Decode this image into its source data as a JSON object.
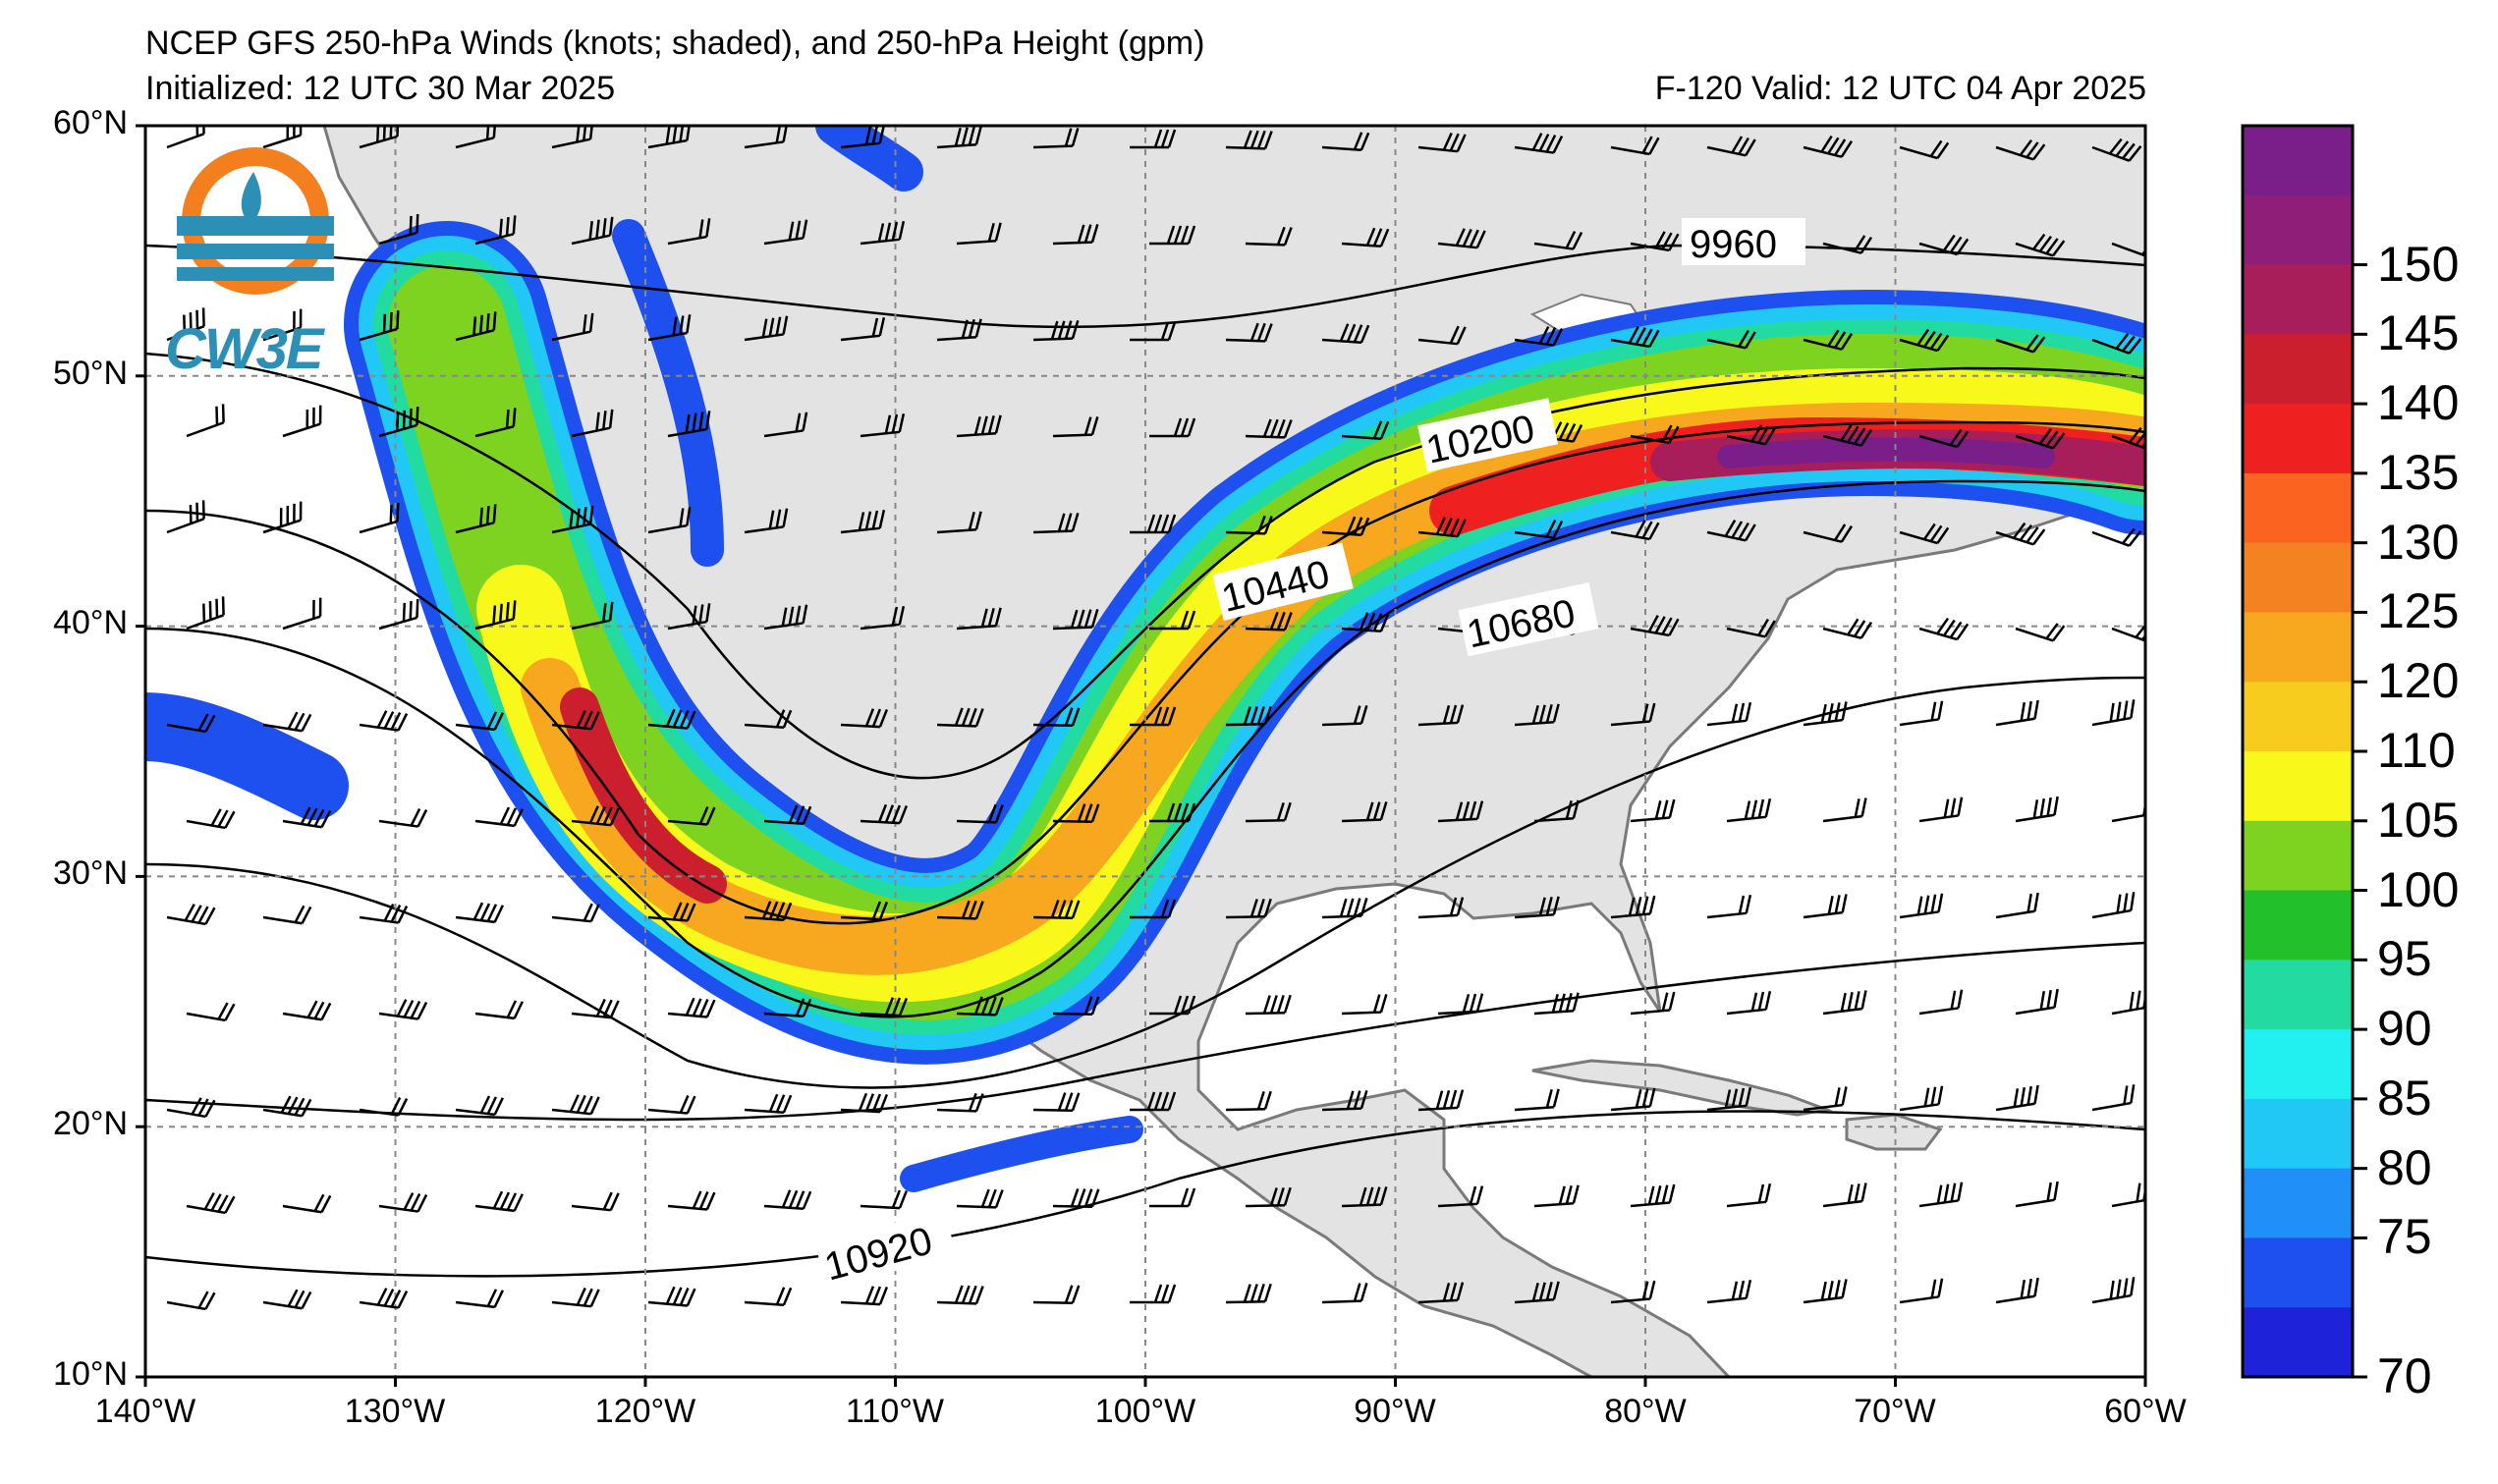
{
  "title_line1": "NCEP GFS 250-hPa Winds (knots; shaded), and 250-hPa Height (gpm)",
  "title_line2": "Initialized: 12 UTC 30 Mar 2025",
  "title_valid": "F-120  Valid: 12 UTC 04 Apr 2025",
  "logo_text": "CW3E",
  "map": {
    "lon_range": [
      -140,
      -60
    ],
    "lat_range": [
      10,
      60
    ],
    "lat_labels": [
      "60°N",
      "50°N",
      "40°N",
      "30°N",
      "20°N",
      "10°N"
    ],
    "lon_labels": [
      "140°W",
      "130°W",
      "120°W",
      "110°W",
      "100°W",
      "90°W",
      "80°W",
      "70°W",
      "60°W"
    ],
    "land_color": "#e3e3e3",
    "grid_style": "dashed"
  },
  "height_contours": [
    {
      "label": "9960"
    },
    {
      "label": "10200"
    },
    {
      "label": "10440"
    },
    {
      "label": "10680"
    },
    {
      "label": "10920"
    }
  ],
  "colorbar": {
    "labels": [
      "150",
      "145",
      "140",
      "135",
      "130",
      "125",
      "120",
      "110",
      "105",
      "100",
      "95",
      "90",
      "85",
      "80",
      "75",
      "70"
    ],
    "colors": [
      "#7a1f8a",
      "#8e1e78",
      "#a81e5a",
      "#cc1f2e",
      "#ee2020",
      "#fa6420",
      "#f58220",
      "#f7a81e",
      "#f7cc1e",
      "#f8f81a",
      "#7ed321",
      "#22c02a",
      "#22dba0",
      "#22f0f0",
      "#22c8f5",
      "#2090f8",
      "#1e50f0",
      "#1e22d8"
    ]
  }
}
